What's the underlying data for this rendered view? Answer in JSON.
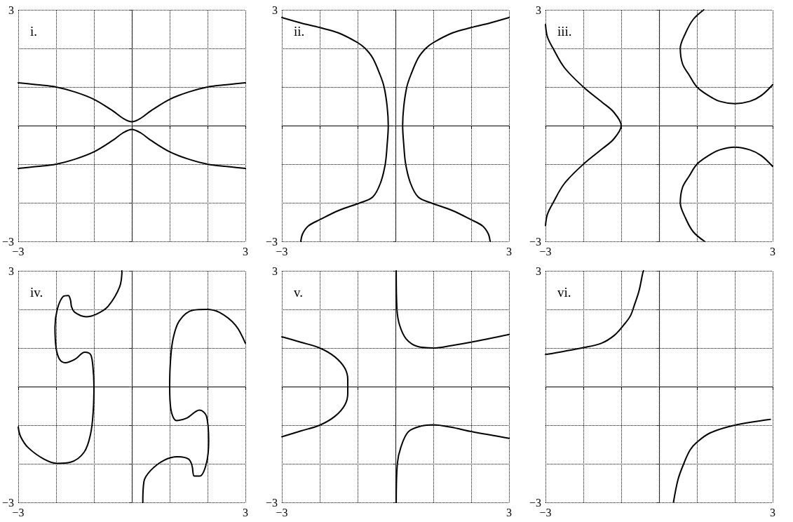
{
  "chart_data": [
    {
      "type": "line",
      "title": "i.",
      "xlim": [
        -3,
        3
      ],
      "ylim": [
        -3,
        3
      ],
      "xticks": [
        {
          "value": -3,
          "label": "−3"
        },
        {
          "value": -2,
          "label": null
        },
        {
          "value": -1,
          "label": null
        },
        {
          "value": 0,
          "label": null
        },
        {
          "value": 1,
          "label": null
        },
        {
          "value": 2,
          "label": null
        },
        {
          "value": 3,
          "label": "3"
        }
      ],
      "yticks": [
        {
          "value": -3,
          "label": "−3"
        },
        {
          "value": -2,
          "label": null
        },
        {
          "value": -1,
          "label": null
        },
        {
          "value": 0,
          "label": null
        },
        {
          "value": 1,
          "label": null
        },
        {
          "value": 2,
          "label": null
        },
        {
          "value": 3,
          "label": "3"
        }
      ],
      "grid": true,
      "marker": "none",
      "line_style": "solid",
      "series": [
        {
          "color": "#000000",
          "x": [
            -3,
            -2.5,
            -2,
            -1.5,
            -1,
            -0.5,
            -0.25,
            0,
            0.25,
            0.5,
            1,
            1.5,
            2,
            2.5,
            3
          ],
          "values": [
            1.11,
            1.06,
            1.0,
            0.87,
            0.68,
            0.38,
            0.2,
            0.1,
            0.2,
            0.38,
            0.68,
            0.87,
            1.0,
            1.06,
            1.11
          ]
        },
        {
          "color": "#000000",
          "x": [
            -3,
            -2.5,
            -2,
            -1.5,
            -1,
            -0.5,
            -0.25,
            0,
            0.25,
            0.5,
            1,
            1.5,
            2,
            2.5,
            3
          ],
          "values": [
            -1.11,
            -1.06,
            -1.0,
            -0.87,
            -0.68,
            -0.38,
            -0.2,
            -0.1,
            -0.2,
            -0.38,
            -0.68,
            -0.87,
            -1.0,
            -1.06,
            -1.11
          ]
        }
      ]
    },
    {
      "type": "line",
      "title": "ii.",
      "xlim": [
        -3,
        3
      ],
      "ylim": [
        -3,
        3
      ],
      "xticks": [
        {
          "value": -3,
          "label": "−3"
        },
        {
          "value": -2,
          "label": null
        },
        {
          "value": -1,
          "label": null
        },
        {
          "value": 0,
          "label": null
        },
        {
          "value": 1,
          "label": null
        },
        {
          "value": 2,
          "label": null
        },
        {
          "value": 3,
          "label": "3"
        }
      ],
      "yticks": [
        {
          "value": -3,
          "label": "−3"
        },
        {
          "value": -2,
          "label": null
        },
        {
          "value": -1,
          "label": null
        },
        {
          "value": 0,
          "label": null
        },
        {
          "value": 1,
          "label": null
        },
        {
          "value": 2,
          "label": null
        },
        {
          "value": 3,
          "label": "3"
        }
      ],
      "grid": true,
      "marker": "none",
      "line_style": "solid",
      "series": [
        {
          "color": "#000000",
          "x": [
            3,
            2.5,
            2,
            1.5,
            1,
            0.8,
            0.6,
            0.4,
            0.3,
            0.22,
            0.19,
            0.22,
            0.27,
            0.4,
            0.6,
            0.93,
            1.5,
            2,
            2.3,
            2.45,
            2.5
          ],
          "values": [
            2.8,
            2.66,
            2.54,
            2.4,
            2.15,
            2.0,
            1.75,
            1.3,
            1.0,
            0.5,
            0,
            -0.5,
            -1.0,
            -1.5,
            -1.85,
            -2.0,
            -2.2,
            -2.44,
            -2.6,
            -2.8,
            -3
          ]
        },
        {
          "color": "#000000",
          "x": [
            -3,
            -2.5,
            -2,
            -1.5,
            -1,
            -0.8,
            -0.6,
            -0.4,
            -0.3,
            -0.22,
            -0.19,
            -0.22,
            -0.27,
            -0.4,
            -0.6,
            -0.93,
            -1.5,
            -2,
            -2.3,
            -2.45,
            -2.5
          ],
          "values": [
            2.8,
            2.66,
            2.54,
            2.4,
            2.15,
            2.0,
            1.75,
            1.3,
            1.0,
            0.5,
            0,
            -0.5,
            -1.0,
            -1.5,
            -1.85,
            -2.0,
            -2.2,
            -2.44,
            -2.6,
            -2.8,
            -3
          ]
        }
      ]
    },
    {
      "type": "line",
      "title": "iii.",
      "xlim": [
        -3,
        3
      ],
      "ylim": [
        -3,
        3
      ],
      "xticks": [
        {
          "value": -3,
          "label": "−3"
        },
        {
          "value": -2,
          "label": null
        },
        {
          "value": -1,
          "label": null
        },
        {
          "value": 0,
          "label": null
        },
        {
          "value": 1,
          "label": null
        },
        {
          "value": 2,
          "label": null
        },
        {
          "value": 3,
          "label": "3"
        }
      ],
      "yticks": [
        {
          "value": -3,
          "label": "−3"
        },
        {
          "value": -2,
          "label": null
        },
        {
          "value": -1,
          "label": null
        },
        {
          "value": 0,
          "label": null
        },
        {
          "value": 1,
          "label": null
        },
        {
          "value": 2,
          "label": null
        },
        {
          "value": 3,
          "label": "3"
        }
      ],
      "grid": true,
      "marker": "none",
      "line_style": "solid",
      "series": [
        {
          "color": "#000000",
          "x": [
            -3,
            -2.95,
            -2.8,
            -2.5,
            -2,
            -1.5,
            -1.2,
            -1.0,
            -1.2,
            -1.5,
            -2,
            -2.5,
            -2.8,
            -2.95,
            -3
          ],
          "values": [
            2.62,
            2.3,
            2.0,
            1.5,
            1.0,
            0.6,
            0.35,
            0,
            -0.35,
            -0.6,
            -1.0,
            -1.5,
            -2.0,
            -2.3,
            -2.59
          ]
        },
        {
          "color": "#000000",
          "x": [
            1.18,
            0.9,
            0.7,
            0.56,
            0.62,
            0.8,
            1.0,
            1.3,
            1.6,
            2.0,
            2.4,
            2.7,
            3.0
          ],
          "values": [
            3,
            2.75,
            2.4,
            2.0,
            1.6,
            1.3,
            1.0,
            0.78,
            0.63,
            0.57,
            0.63,
            0.78,
            1.06
          ]
        },
        {
          "color": "#000000",
          "x": [
            1.2,
            0.9,
            0.7,
            0.56,
            0.62,
            0.8,
            1.0,
            1.3,
            1.6,
            2.0,
            2.4,
            2.7,
            3.0
          ],
          "values": [
            -3,
            -2.75,
            -2.4,
            -2.0,
            -1.6,
            -1.3,
            -1.0,
            -0.78,
            -0.63,
            -0.56,
            -0.63,
            -0.78,
            -1.06
          ]
        }
      ]
    },
    {
      "type": "line",
      "title": "iv.",
      "xlim": [
        -3,
        3
      ],
      "ylim": [
        -3,
        3
      ],
      "xticks": [
        {
          "value": -3,
          "label": "−3"
        },
        {
          "value": -2,
          "label": null
        },
        {
          "value": -1,
          "label": null
        },
        {
          "value": 0,
          "label": null
        },
        {
          "value": 1,
          "label": null
        },
        {
          "value": 2,
          "label": null
        },
        {
          "value": 3,
          "label": "3"
        }
      ],
      "yticks": [
        {
          "value": -3,
          "label": "−3"
        },
        {
          "value": -2,
          "label": null
        },
        {
          "value": -1,
          "label": null
        },
        {
          "value": 0,
          "label": null
        },
        {
          "value": 1,
          "label": null
        },
        {
          "value": 2,
          "label": null
        },
        {
          "value": 3,
          "label": "3"
        }
      ],
      "grid": true,
      "marker": "none",
      "line_style": "solid",
      "series": [
        {
          "color": "#000000",
          "x": [
            -0.26,
            -0.32,
            -0.62,
            -0.91,
            -1.21,
            -1.5,
            -1.59,
            -1.62,
            -1.68,
            -1.82,
            -1.97,
            -2.03,
            -2.0,
            -1.91,
            -1.76,
            -1.5,
            -1.24,
            -1.09,
            -1.03,
            -1.0,
            -1.02,
            -1.09,
            -1.26,
            -1.62,
            -1.97,
            -2.32,
            -2.74,
            -2.94,
            -3
          ],
          "values": [
            3,
            2.59,
            2.09,
            1.89,
            1.81,
            1.92,
            2.06,
            2.24,
            2.36,
            2.33,
            2.0,
            1.54,
            1.0,
            0.71,
            0.62,
            0.71,
            0.89,
            0.83,
            0.54,
            0,
            -0.64,
            -1.23,
            -1.7,
            -1.96,
            -1.99,
            -1.88,
            -1.58,
            -1.29,
            -1.05
          ]
        },
        {
          "color": "#000000",
          "x": [
            3,
            2.74,
            2.32,
            1.97,
            1.62,
            1.26,
            1.09,
            1.02,
            1.0,
            1.03,
            1.18,
            1.44,
            1.79,
            1.97,
            2.03,
            1.97,
            1.79,
            1.65,
            1.59,
            1.5,
            1.21,
            0.85,
            0.5,
            0.32,
            0.29
          ],
          "values": [
            1.12,
            1.59,
            1.92,
            2.0,
            1.98,
            1.71,
            1.24,
            0.65,
            0,
            -0.58,
            -0.88,
            -0.82,
            -0.61,
            -0.76,
            -1.41,
            -1.99,
            -2.32,
            -2.32,
            -2.05,
            -1.88,
            -1.82,
            -1.91,
            -2.17,
            -2.46,
            -3
          ]
        }
      ]
    },
    {
      "type": "line",
      "title": "v.",
      "xlim": [
        -3,
        3
      ],
      "ylim": [
        -3,
        3
      ],
      "xticks": [
        {
          "value": -3,
          "label": "−3"
        },
        {
          "value": -2,
          "label": null
        },
        {
          "value": -1,
          "label": null
        },
        {
          "value": 0,
          "label": null
        },
        {
          "value": 1,
          "label": null
        },
        {
          "value": 2,
          "label": null
        },
        {
          "value": 3,
          "label": "3"
        }
      ],
      "yticks": [
        {
          "value": -3,
          "label": "−3"
        },
        {
          "value": -2,
          "label": null
        },
        {
          "value": -1,
          "label": null
        },
        {
          "value": 0,
          "label": null
        },
        {
          "value": 1,
          "label": null
        },
        {
          "value": 2,
          "label": null
        },
        {
          "value": 3,
          "label": "3"
        }
      ],
      "grid": true,
      "marker": "none",
      "line_style": "solid",
      "series": [
        {
          "color": "#000000",
          "x": [
            -3,
            -2.5,
            -2,
            -1.6,
            -1.34,
            -1.26,
            -1.26,
            -1.26,
            -1.34,
            -1.6,
            -2,
            -2.5,
            -3
          ],
          "values": [
            1.29,
            1.15,
            1.0,
            0.77,
            0.48,
            0.18,
            0,
            -0.18,
            -0.48,
            -0.77,
            -1.0,
            -1.15,
            -1.3
          ]
        },
        {
          "color": "#000000",
          "x": [
            0.02,
            0.04,
            0.11,
            0.28,
            0.58,
            1.0,
            1.46,
            1.99,
            3
          ],
          "values": [
            3,
            2.0,
            1.59,
            1.24,
            1.04,
            1.0,
            1.06,
            1.15,
            1.35
          ]
        },
        {
          "color": "#000000",
          "x": [
            0.02,
            0.05,
            0.14,
            0.34,
            0.69,
            1.0,
            1.46,
            2.02,
            3
          ],
          "values": [
            -3,
            -2.0,
            -1.58,
            -1.17,
            -1.02,
            -0.99,
            -1.05,
            -1.17,
            -1.34
          ]
        }
      ]
    },
    {
      "type": "line",
      "title": "vi.",
      "xlim": [
        -3,
        3
      ],
      "ylim": [
        -3,
        3
      ],
      "xticks": [
        {
          "value": -3,
          "label": "−3"
        },
        {
          "value": -2,
          "label": null
        },
        {
          "value": -1,
          "label": null
        },
        {
          "value": 0,
          "label": null
        },
        {
          "value": 1,
          "label": null
        },
        {
          "value": 2,
          "label": null
        },
        {
          "value": 3,
          "label": "3"
        }
      ],
      "yticks": [
        {
          "value": -3,
          "label": "−3"
        },
        {
          "value": -2,
          "label": null
        },
        {
          "value": -1,
          "label": null
        },
        {
          "value": 0,
          "label": null
        },
        {
          "value": 1,
          "label": null
        },
        {
          "value": 2,
          "label": null
        },
        {
          "value": 3,
          "label": "3"
        }
      ],
      "grid": true,
      "marker": "none",
      "line_style": "solid",
      "series": [
        {
          "color": "#000000",
          "x": [
            -3,
            -2,
            -1.53,
            -1.18,
            -0.94,
            -0.76,
            -0.65,
            -0.53,
            -0.43,
            -0.41
          ],
          "values": [
            0.83,
            1.01,
            1.12,
            1.33,
            1.59,
            1.83,
            2.12,
            2.48,
            2.95,
            3
          ]
        },
        {
          "color": "#000000",
          "x": [
            0.38,
            0.5,
            0.65,
            0.82,
            1.0,
            1.35,
            2.0,
            2.94
          ],
          "values": [
            -3,
            -2.41,
            -2.0,
            -1.64,
            -1.44,
            -1.2,
            -1.0,
            -0.85
          ]
        }
      ]
    }
  ]
}
